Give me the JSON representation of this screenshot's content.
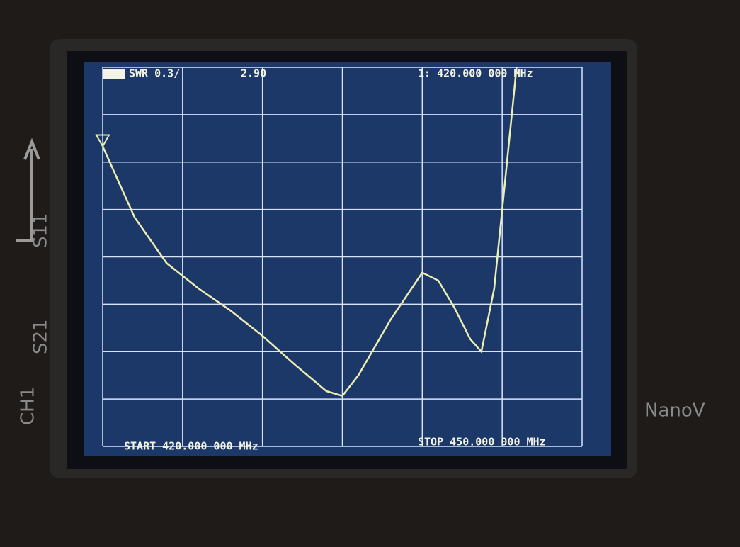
{
  "chart_data": {
    "type": "line",
    "trace_label": "SWR 0.3/",
    "marker_value": "2.90",
    "marker_readout": "1: 420.000 000 MHz",
    "start_label": "START 420.000 000 MHz",
    "stop_label": "STOP 450.000 000 MHz",
    "x": [
      420,
      422,
      424,
      426,
      428,
      430,
      432,
      434,
      435,
      436,
      438,
      440,
      441,
      442,
      443,
      443.7,
      444.5,
      445,
      445.9
    ],
    "values": [
      2.9,
      2.45,
      2.16,
      2.0,
      1.86,
      1.7,
      1.52,
      1.35,
      1.32,
      1.45,
      1.8,
      2.1,
      2.05,
      1.88,
      1.68,
      1.6,
      2.0,
      2.5,
      3.4
    ],
    "color": "#eeeeb0",
    "xlim": [
      420,
      450
    ],
    "xticks": [
      420,
      425,
      430,
      435,
      440,
      445,
      450
    ],
    "ylim": [
      1.0,
      3.4
    ],
    "yticks": [
      1.0,
      1.3,
      1.6,
      1.9,
      2.2,
      2.5,
      2.8,
      3.1,
      3.4
    ],
    "grid": true,
    "grid_color": "#d8e4ff"
  },
  "device": {
    "labels": [
      "S11",
      "S21",
      "CH1",
      "NanoV"
    ]
  }
}
